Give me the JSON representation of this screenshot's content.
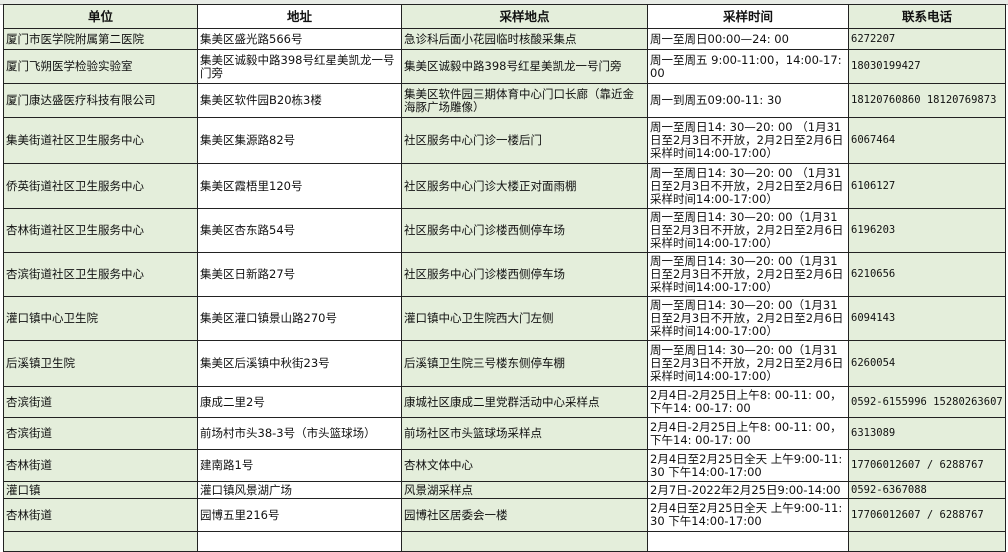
{
  "table": {
    "headers": [
      "单位",
      "地址",
      "采样地点",
      "采样时间",
      "联系电话"
    ],
    "rows": [
      [
        "厦门市医学院附属第二医院",
        "集美区盛光路566号",
        "急诊科后面小花园临时核酸采集点",
        "周一至周日00:00—24: 00",
        "6272207"
      ],
      [
        "厦门飞朔医学检验实验室",
        "集美区诚毅中路398号红星美凯龙一号门旁",
        "集美区诚毅中路398号红星美凯龙一号门旁",
        "周一至周五 9:00-11:00，14:00-17:00",
        "18030199427"
      ],
      [
        "厦门康达盛医疗科技有限公司",
        "集美区软件园B20栋3楼",
        "集美区软件园三期体育中心门口长廊（靠近金海豚广场雕像）",
        "周一到周五09:00-11: 30",
        "18120760860 18120769873"
      ],
      [
        "集美街道社区卫生服务中心",
        "集美区集源路82号",
        "社区服务中心门诊一楼后门",
        "周一至周日14: 30—20: 00 （1月31日至2月3日不开放，2月2日至2月6日采样时间14:00-17:00）",
        "6067464"
      ],
      [
        "侨英街道社区卫生服务中心",
        "集美区霞梧里120号",
        "社区服务中心门诊大楼正对面雨棚",
        "周一至周日14: 30—20: 00 （1月31日至2月3日不开放，2月2日至2月6日采样时间14:00-17:00）",
        "6106127"
      ],
      [
        "杏林街道社区卫生服务中心",
        "集美区杏东路54号",
        "社区服务中心门诊楼西侧停车场",
        "周一至周日14: 30—20: 00（1月31日至2月3日不开放，2月2日至2月6日采样时间14:00-17:00）",
        "6196203"
      ],
      [
        "杏滨街道社区卫生服务中心",
        "集美区日新路27号",
        "社区服务中心门诊楼西侧停车场",
        "周一至周日14: 30—20: 00（1月31日至2月3日不开放，2月2日至2月6日采样时间14:00-17:00）",
        "6210656"
      ],
      [
        "灌口镇中心卫生院",
        "集美区灌口镇景山路270号",
        "灌口镇中心卫生院西大门左侧",
        "周一至周日14: 30—20: 00（1月31日至2月3日不开放，2月2日至2月6日采样时间14:00-17:00）",
        "6094143"
      ],
      [
        "后溪镇卫生院",
        "集美区后溪镇中秋街23号",
        "后溪镇卫生院三号楼东侧停车棚",
        "周一至周日14: 30—20: 00（1月31日至2月3日不开放，2月2日至2月6日采样时间14:00-17:00）",
        "6260054"
      ],
      [
        "杏滨街道",
        "康成二里2号",
        "康城社区康成二里党群活动中心采样点",
        "2月4日-2月25日上午8: 00-11: 00，下午14: 00-17: 00",
        "0592-6155996 15280263607"
      ],
      [
        "杏滨街道",
        "前场村市头38-3号（市头篮球场）",
        "前场社区市头篮球场采样点",
        "2月4日-2月25日上午8: 00-11: 00，下午14: 00-17: 00",
        "6313089"
      ],
      [
        "杏林街道",
        "建南路1号",
        "杏林文体中心",
        "2月4日至2月25日全天 上午9:00-11:30 下午14:00-17:00",
        "17706012607 / 6288767"
      ],
      [
        "灌口镇",
        "灌口镇风景湖广场",
        "风景湖采样点",
        "2月7日-2022年2月25日9:00-14:00",
        "0592-6367088"
      ],
      [
        "杏林街道",
        "园博五里216号",
        "园博社区居委会一楼",
        "2月4日至2月25日全天 上午9:00-11:30 下午14:00-17:00",
        "17706012607 / 6288767"
      ]
    ]
  },
  "colors": {
    "shaded_column": "#e4eedb",
    "border": "#222222"
  }
}
